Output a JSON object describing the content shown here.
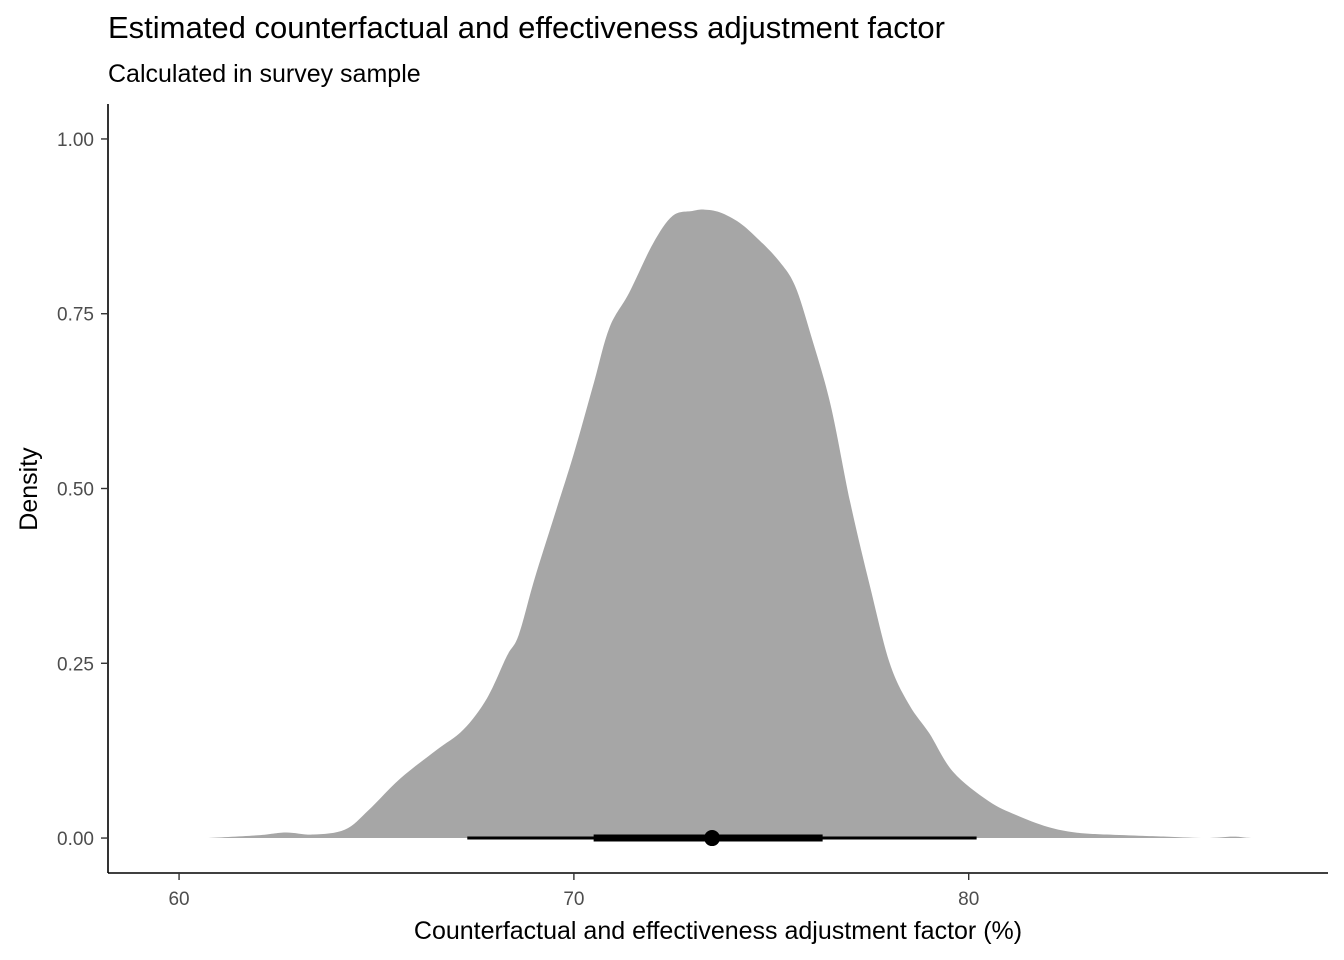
{
  "chart_data": {
    "type": "area",
    "title": "Estimated counterfactual and effectiveness adjustment factor",
    "subtitle": "Calculated in survey sample",
    "xlabel": "Counterfactual and effectiveness adjustment factor (%)",
    "ylabel": "Density",
    "xlim": [
      58.2,
      89.1
    ],
    "ylim": [
      -0.05,
      1.05
    ],
    "x_ticks": [
      60,
      70,
      80
    ],
    "y_ticks": [
      0.0,
      0.25,
      0.5,
      0.75,
      1.0
    ],
    "y_tick_labels": [
      "0.00",
      "0.25",
      "0.50",
      "0.75",
      "1.00"
    ],
    "fill_color": "#a6a6a6",
    "grid": false,
    "density_curve": {
      "x": [
        60.7,
        62.0,
        62.7,
        63.4,
        64.2,
        64.8,
        65.6,
        66.5,
        67.2,
        67.8,
        68.3,
        68.6,
        69.0,
        69.5,
        70.0,
        70.5,
        70.9,
        71.4,
        72.0,
        72.5,
        73.0,
        73.3,
        73.7,
        74.2,
        74.7,
        75.2,
        75.6,
        76.0,
        76.5,
        77.0,
        77.5,
        78.0,
        78.5,
        79.0,
        79.6,
        80.5,
        81.2,
        82.0,
        82.7,
        83.5,
        85.0,
        86.0,
        86.7,
        87.2,
        88.2
      ],
      "y": [
        0.0,
        0.004,
        0.008,
        0.005,
        0.012,
        0.04,
        0.085,
        0.125,
        0.155,
        0.2,
        0.26,
        0.29,
        0.37,
        0.46,
        0.55,
        0.65,
        0.73,
        0.78,
        0.85,
        0.89,
        0.897,
        0.899,
        0.895,
        0.88,
        0.855,
        0.825,
        0.79,
        0.72,
        0.62,
        0.48,
        0.36,
        0.25,
        0.19,
        0.15,
        0.095,
        0.053,
        0.033,
        0.016,
        0.008,
        0.005,
        0.002,
        0.0,
        0.002,
        0.0,
        0.0
      ]
    },
    "point_interval": {
      "point": 73.5,
      "interval_thin": [
        67.3,
        80.2
      ],
      "interval_thick": [
        70.5,
        76.3
      ],
      "y": 0.0,
      "color": "#000000"
    }
  }
}
